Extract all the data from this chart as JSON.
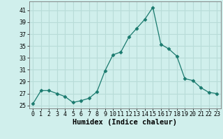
{
  "x": [
    0,
    1,
    2,
    3,
    4,
    5,
    6,
    7,
    8,
    9,
    10,
    11,
    12,
    13,
    14,
    15,
    16,
    17,
    18,
    19,
    20,
    21,
    22,
    23
  ],
  "y": [
    25.3,
    27.5,
    27.5,
    27.0,
    26.5,
    25.5,
    25.8,
    26.2,
    27.3,
    30.8,
    33.5,
    34.0,
    36.5,
    38.0,
    39.5,
    41.5,
    35.3,
    34.5,
    33.3,
    29.5,
    29.2,
    28.0,
    27.2,
    27.0
  ],
  "line_color": "#1a7a6e",
  "marker": "D",
  "marker_size": 2.5,
  "xlabel": "Humidex (Indice chaleur)",
  "xlim": [
    -0.5,
    23.5
  ],
  "ylim": [
    24.5,
    42.5
  ],
  "yticks": [
    25,
    27,
    29,
    31,
    33,
    35,
    37,
    39,
    41
  ],
  "xticks": [
    0,
    1,
    2,
    3,
    4,
    5,
    6,
    7,
    8,
    9,
    10,
    11,
    12,
    13,
    14,
    15,
    16,
    17,
    18,
    19,
    20,
    21,
    22,
    23
  ],
  "bg_color": "#d0efec",
  "grid_color": "#b8dcd8",
  "tick_fontsize": 6.0,
  "xlabel_fontsize": 7.5
}
